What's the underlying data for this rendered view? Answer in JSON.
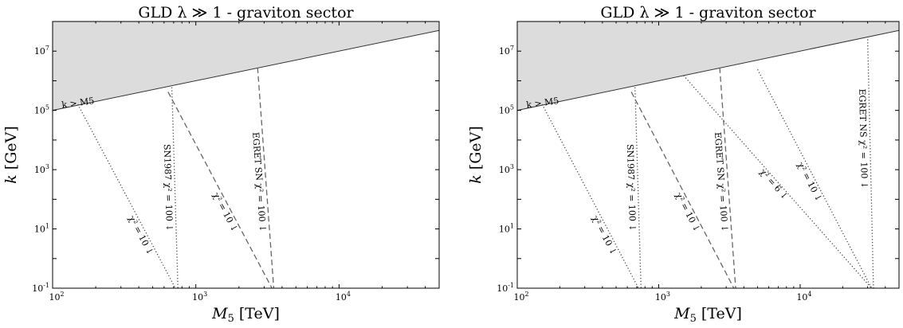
{
  "chart_data": [
    {
      "type": "line",
      "title": "GLD λ ≫ 1 - graviton sector",
      "xlabel": "M5 [TeV]",
      "ylabel": "k [GeV]",
      "xscale": "log",
      "yscale": "log",
      "xlim": [
        100,
        50000
      ],
      "ylim": [
        0.1,
        100000000
      ],
      "xticks": [
        "10^2",
        "10^3",
        "10^4"
      ],
      "yticks": [
        "10^-1",
        "10^1",
        "10^3",
        "10^5",
        "10^7"
      ],
      "grid": false,
      "shaded_region": {
        "label": "k > M5",
        "boundary": [
          [
            100,
            100000
          ],
          [
            50000,
            50000000
          ]
        ]
      },
      "series": [
        {
          "name": "χ² = 10 ↓",
          "style": "dotted",
          "x": [
            150,
            720
          ],
          "y": [
            160000,
            0.1
          ]
        },
        {
          "name": "SN1987 χ² = 100 ↓",
          "style": "dotted",
          "x": [
            680,
            750
          ],
          "y": [
            600000,
            0.1
          ]
        },
        {
          "name": "χ² = 10 ↓",
          "style": "dashed",
          "x": [
            640,
            3400
          ],
          "y": [
            420000,
            0.1
          ]
        },
        {
          "name": "EGRET SN χ² = 100 ↓",
          "style": "dashed",
          "x": [
            2700,
            3500
          ],
          "y": [
            2800000,
            0.1
          ]
        }
      ]
    },
    {
      "type": "line",
      "title": "GLD λ ≫ 1 - graviton sector",
      "xlabel": "M5 [TeV]",
      "ylabel": "k [GeV]",
      "xscale": "log",
      "yscale": "log",
      "xlim": [
        100,
        50000
      ],
      "ylim": [
        0.1,
        100000000
      ],
      "xticks": [
        "10^2",
        "10^3",
        "10^4"
      ],
      "yticks": [
        "10^-1",
        "10^1",
        "10^3",
        "10^5",
        "10^7"
      ],
      "grid": false,
      "shaded_region": {
        "label": "k > M5",
        "boundary": [
          [
            100,
            100000
          ],
          [
            50000,
            50000000
          ]
        ]
      },
      "series": [
        {
          "name": "χ² = 10 ↓",
          "style": "dotted",
          "x": [
            150,
            720
          ],
          "y": [
            160000,
            0.1
          ]
        },
        {
          "name": "SN1987 χ² = 100 ↓",
          "style": "dotted",
          "x": [
            680,
            750
          ],
          "y": [
            600000,
            0.1
          ]
        },
        {
          "name": "χ² = 10 ↓",
          "style": "dashed",
          "x": [
            640,
            3400
          ],
          "y": [
            420000,
            0.1
          ]
        },
        {
          "name": "EGRET SN χ² = 100 ↓",
          "style": "dashed",
          "x": [
            2700,
            3500
          ],
          "y": [
            2800000,
            0.1
          ]
        },
        {
          "name": "χ² = 6 ↓",
          "style": "dotted",
          "x": [
            1500,
            32000
          ],
          "y": [
            1500000,
            0.1
          ]
        },
        {
          "name": "χ² = 10 ↓",
          "style": "dotted",
          "x": [
            5000,
            32000
          ],
          "y": [
            2400000,
            0.1
          ]
        },
        {
          "name": "EGRET NS χ² = 100 ↓",
          "style": "dotted",
          "x": [
            30000,
            33000
          ],
          "y": [
            25000000,
            0.1
          ]
        }
      ]
    }
  ]
}
